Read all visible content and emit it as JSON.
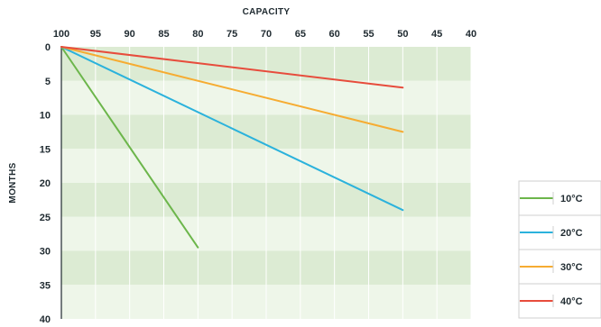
{
  "chart_data": {
    "type": "line",
    "xlabel": "CAPACITY",
    "ylabel": "MONTHS",
    "x_reversed": true,
    "xlim": [
      100,
      40
    ],
    "ylim": [
      0,
      40
    ],
    "y_inverted": true,
    "x_ticks": [
      100,
      95,
      90,
      85,
      80,
      75,
      70,
      65,
      60,
      55,
      50,
      45,
      40
    ],
    "y_ticks": [
      0,
      5,
      10,
      15,
      20,
      25,
      30,
      35,
      40
    ],
    "grid": true,
    "background_bands": {
      "colors": [
        "#dcebd3",
        "#eef6e9"
      ],
      "band_size": 5
    },
    "legend_position": "bottom-right",
    "series": [
      {
        "name": "10°C",
        "color": "#6cb64b",
        "x": [
          100,
          80
        ],
        "y": [
          0,
          29.5
        ]
      },
      {
        "name": "20°C",
        "color": "#2bb2dc",
        "x": [
          100,
          50
        ],
        "y": [
          0,
          24
        ]
      },
      {
        "name": "30°C",
        "color": "#f6ac32",
        "x": [
          100,
          50
        ],
        "y": [
          0,
          12.5
        ]
      },
      {
        "name": "40°C",
        "color": "#e74c3c",
        "x": [
          100,
          50
        ],
        "y": [
          0,
          6
        ]
      }
    ]
  }
}
